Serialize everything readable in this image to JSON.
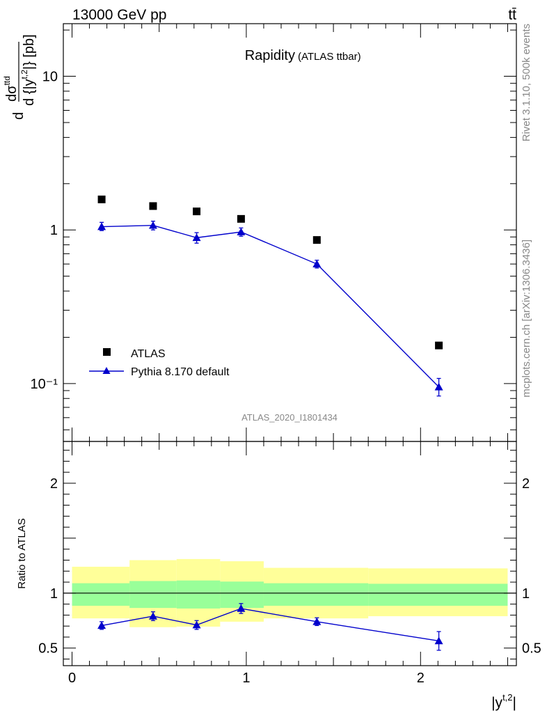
{
  "header": {
    "energy_label": "13000 GeV pp",
    "process_label": "tt̄"
  },
  "side": {
    "rivet_label": "Rivet 3.1.10,  500k events",
    "mcplots_label": "mcplots.cern.ch [arXiv:1306.3436]"
  },
  "chart_data": [
    {
      "type": "scatter",
      "title": "Rapidity",
      "subtitle": "(ATLAS ttbar)",
      "ylabel": "d dσ^ttd / d {|y^t,2|} [pb]",
      "xlabel": "|y^t,2|",
      "yscale": "log",
      "xlim": [
        -0.05,
        2.55
      ],
      "ylim": [
        0.042,
        22
      ],
      "yticks": [
        {
          "value": 10,
          "label": "10"
        },
        {
          "value": 1,
          "label": "1"
        },
        {
          "value": 0.1,
          "label": "10⁻¹"
        }
      ],
      "analysis_label": "ATLAS_2020_I1801434",
      "legend_position": "bottom-left",
      "series": [
        {
          "name": "ATLAS",
          "marker": "square",
          "color": "#000000",
          "x": [
            0.17,
            0.465,
            0.715,
            0.97,
            1.405,
            2.105
          ],
          "y": [
            1.58,
            1.43,
            1.32,
            1.18,
            0.86,
            0.177
          ]
        },
        {
          "name": "Pythia 8.170 default",
          "marker": "triangle",
          "color": "#0000cc",
          "x": [
            0.17,
            0.465,
            0.715,
            0.97,
            1.405,
            2.105
          ],
          "y": [
            1.05,
            1.07,
            0.89,
            0.97,
            0.6,
            0.095
          ],
          "yerr_low": [
            0.06,
            0.07,
            0.07,
            0.06,
            0.035,
            0.012
          ],
          "yerr_high": [
            0.07,
            0.07,
            0.07,
            0.06,
            0.035,
            0.013
          ]
        }
      ]
    },
    {
      "type": "scatter",
      "ylabel": "Ratio to ATLAS",
      "xlim": [
        -0.05,
        2.55
      ],
      "ylim": [
        0.34,
        2.38
      ],
      "yticks": [
        {
          "value": 0.5,
          "label": "0.5"
        },
        {
          "value": 1,
          "label": "1"
        },
        {
          "value": 2,
          "label": "2"
        }
      ],
      "xticks": [
        {
          "value": 0,
          "label": "0"
        },
        {
          "value": 1,
          "label": "1"
        },
        {
          "value": 2,
          "label": "2"
        }
      ],
      "bands": {
        "edges": [
          0.0,
          0.33,
          0.6,
          0.85,
          1.1,
          1.7,
          2.5
        ],
        "inner_color": "#99ff99",
        "outer_color": "#ffff99",
        "inner_low": [
          0.885,
          0.865,
          0.86,
          0.865,
          0.885,
          0.885
        ],
        "inner_high": [
          1.09,
          1.11,
          1.115,
          1.105,
          1.09,
          1.085
        ],
        "outer_low": [
          0.77,
          0.69,
          0.695,
          0.74,
          0.77,
          0.79
        ],
        "outer_high": [
          1.24,
          1.3,
          1.31,
          1.29,
          1.23,
          1.225
        ]
      },
      "series": [
        {
          "name": "Pythia 8.170 default",
          "marker": "triangle",
          "color": "#0000cc",
          "x": [
            0.17,
            0.465,
            0.715,
            0.97,
            1.405,
            2.105
          ],
          "y": [
            0.705,
            0.79,
            0.71,
            0.86,
            0.74,
            0.565
          ],
          "yerr": [
            0.035,
            0.04,
            0.04,
            0.045,
            0.035,
            0.085
          ]
        }
      ]
    }
  ]
}
